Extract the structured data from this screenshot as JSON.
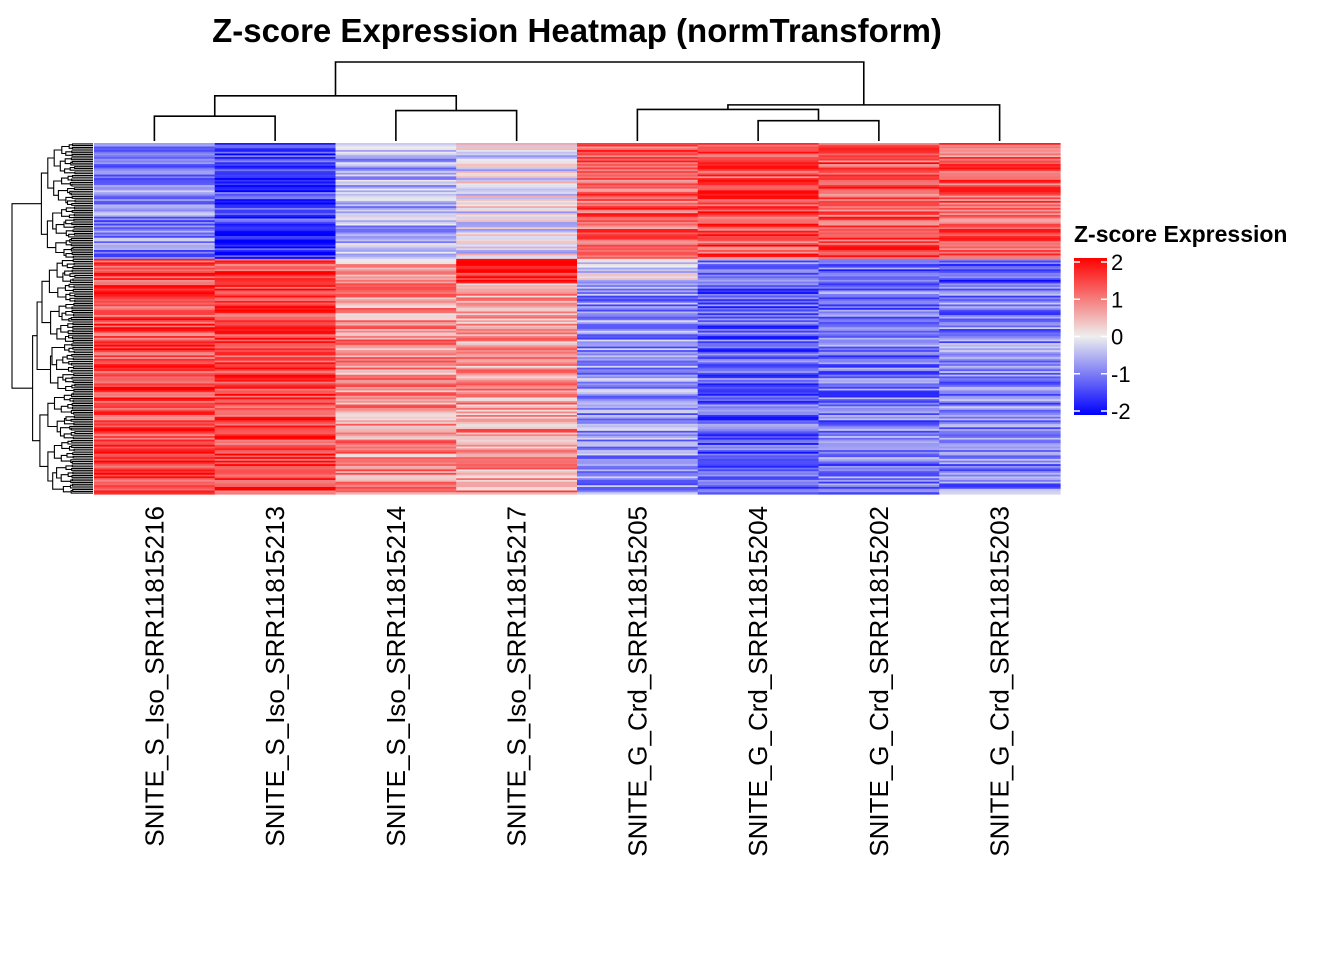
{
  "chart_data": {
    "type": "heatmap",
    "title": "Z-score Expression Heatmap (normTransform)",
    "columns": [
      "SNITE_S_Iso_SRR11815216",
      "SNITE_S_Iso_SRR11815213",
      "SNITE_S_Iso_SRR11815214",
      "SNITE_S_Iso_SRR11815217",
      "SNITE_G_Crd_SRR11815205",
      "SNITE_G_Crd_SRR11815204",
      "SNITE_G_Crd_SRR11815202",
      "SNITE_G_Crd_SRR11815203"
    ],
    "row_count": 200,
    "row_blocks": [
      {
        "fraction": 0.33,
        "values": [
          -0.9,
          -1.5,
          -0.5,
          -0.1,
          1.2,
          1.4,
          1.3,
          1.2
        ]
      },
      {
        "fraction": 0.07,
        "values": [
          1.3,
          1.4,
          0.5,
          1.8,
          -0.3,
          -1.0,
          -1.1,
          -1.3
        ]
      },
      {
        "fraction": 0.6,
        "values": [
          1.4,
          1.5,
          0.8,
          0.8,
          -0.8,
          -1.2,
          -1.0,
          -0.9
        ]
      }
    ],
    "color_scale": {
      "low": "#0000ff",
      "mid": "#eeeeee",
      "high": "#ff0000",
      "range": [
        -2,
        2
      ]
    },
    "legend": {
      "title": "Z-score Expression",
      "ticks": [
        2,
        1,
        0,
        -1,
        -2
      ],
      "tick_labels": [
        "2",
        "1",
        "0",
        "-1",
        "-2"
      ],
      "position": "right"
    },
    "column_dendrogram": {
      "merges": [
        [
          0,
          1,
          0.22
        ],
        [
          2,
          3,
          0.27
        ],
        [
          8,
          9,
          0.4
        ],
        [
          6,
          5,
          0.18
        ],
        [
          4,
          11,
          0.28
        ],
        [
          12,
          7,
          0.32
        ],
        [
          10,
          13,
          0.7
        ]
      ]
    }
  }
}
